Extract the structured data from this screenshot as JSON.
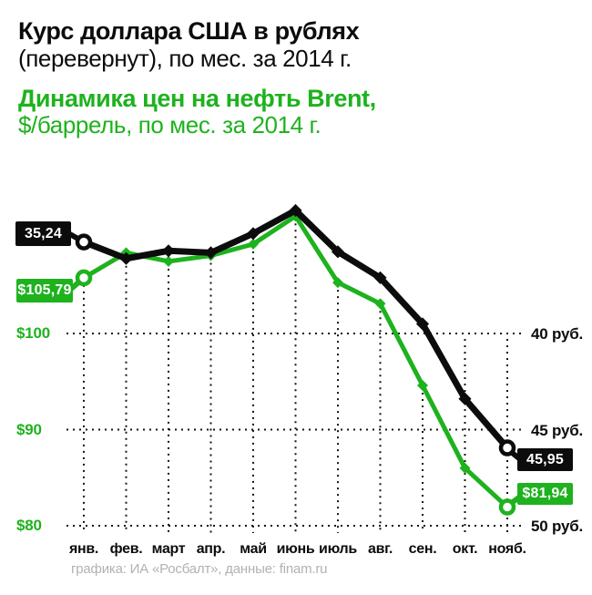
{
  "header": {
    "title_usd_bold": "Курс доллара США в рублях",
    "title_usd_rest": "(перевернут), по мес. за 2014 г.",
    "title_brent_bold": "Динамика цен на нефть Brent,",
    "title_brent_rest": "$/баррель, по мес. за 2014 г."
  },
  "colors": {
    "ink": "#0c0c0c",
    "green": "#1eb21e",
    "credits_gray": "#b2b2b2",
    "white": "#ffffff"
  },
  "chart_data": {
    "type": "line",
    "title": "Курс доллара США в рублях (перевернут), по мес. за 2014 г.",
    "title2": "Динамика цен на нефть Brent, $/баррель, по мес. за 2014 г.",
    "categories": [
      "янв.",
      "фев.",
      "март",
      "апр.",
      "май",
      "июнь",
      "июль",
      "авг.",
      "сен.",
      "окт.",
      "нояб."
    ],
    "series": [
      {
        "name": "Курс доллара США, руб. (перевернут)",
        "axis": "rub",
        "color": "#0c0c0c",
        "values": [
          35.24,
          36.1,
          35.7,
          35.8,
          34.8,
          33.6,
          35.75,
          37.1,
          39.5,
          43.4,
          45.95
        ],
        "start_label": "35,24",
        "end_label": "45,95"
      },
      {
        "name": "Цена на нефть Brent, $/баррель",
        "axis": "usd",
        "color": "#1eb21e",
        "values": [
          105.79,
          108.4,
          107.5,
          108.1,
          109.3,
          112.2,
          105.3,
          103.1,
          94.6,
          86.0,
          81.94
        ],
        "start_label": "$105,79",
        "end_label": "$81,94"
      }
    ],
    "axes": {
      "usd": {
        "side": "left",
        "color": "#1eb21e",
        "ticks": [
          {
            "value": 100,
            "label": "$100"
          },
          {
            "value": 90,
            "label": "$90"
          },
          {
            "value": 80,
            "label": "$80"
          }
        ]
      },
      "rub": {
        "side": "right",
        "color": "#0c0c0c",
        "inverted": true,
        "ticks": [
          {
            "value": 40,
            "label": "40 руб."
          },
          {
            "value": 45,
            "label": "45 руб."
          },
          {
            "value": 50,
            "label": "50 руб."
          }
        ]
      }
    },
    "grid": {
      "style": "dotted",
      "horizontal": true,
      "vertical": true
    },
    "legend": "none"
  },
  "footer": {
    "credits": "графика: ИА «Росбалт», данные: finam.ru"
  }
}
